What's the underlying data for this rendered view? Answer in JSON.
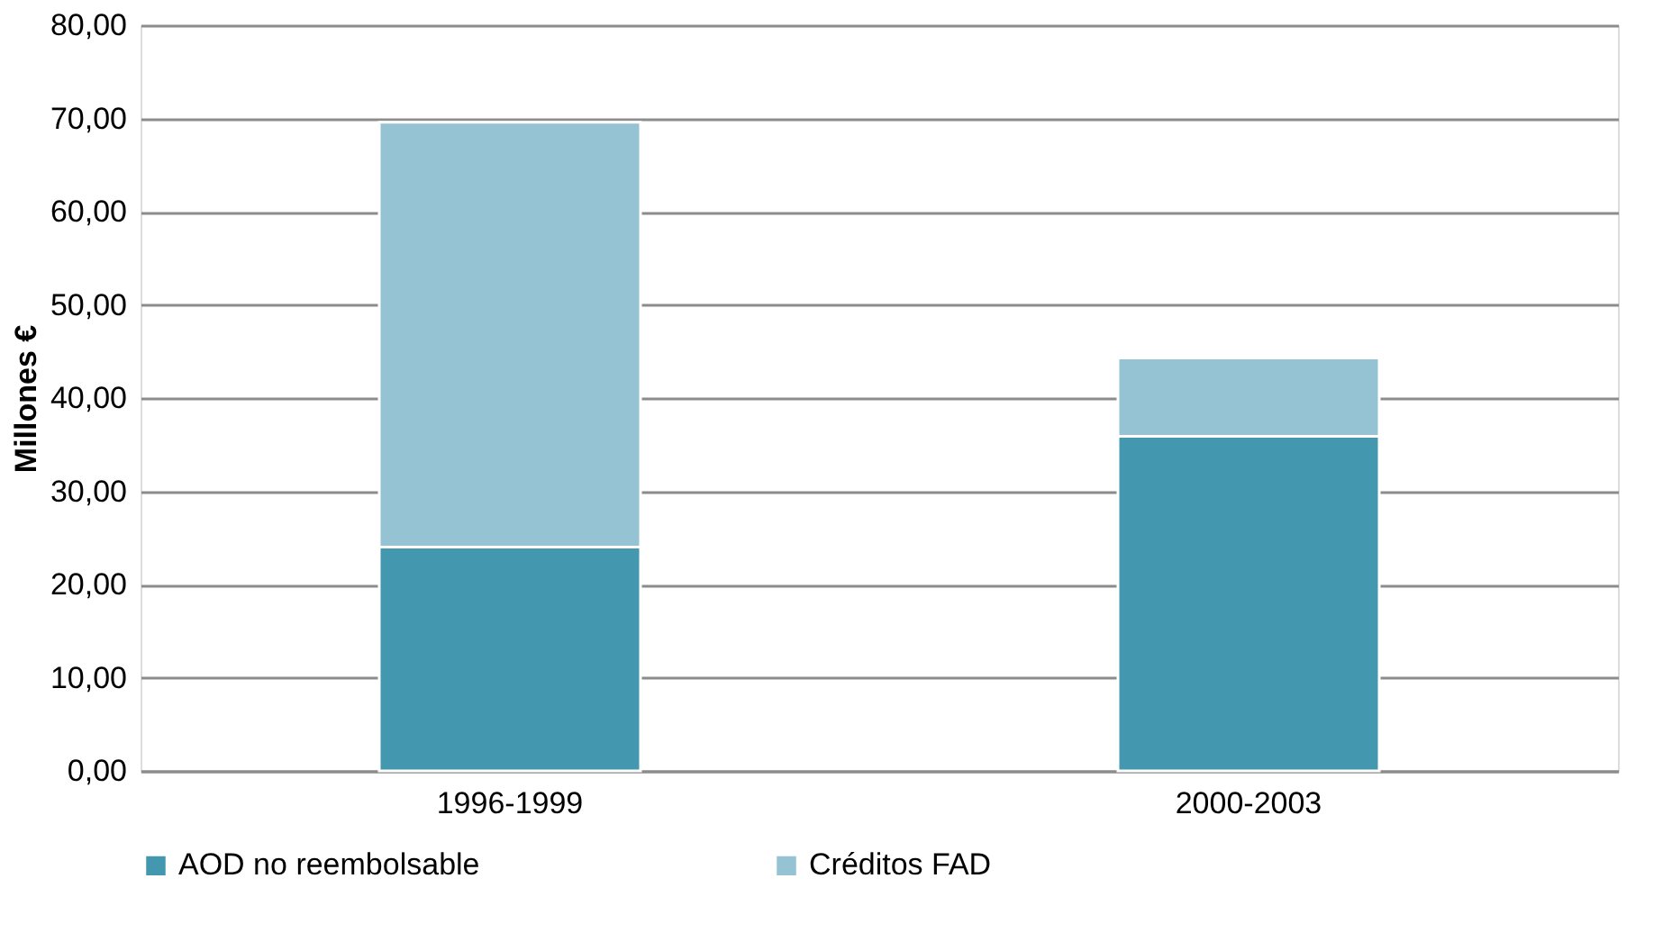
{
  "chart_data": {
    "type": "bar",
    "stacked": true,
    "ylabel": "Millones €",
    "categories": [
      "1996-1999",
      "2000-2003"
    ],
    "series": [
      {
        "name": "AOD no reembolsable",
        "color": "#4397af",
        "values": [
          24.0,
          35.9
        ]
      },
      {
        "name": "Créditos FAD",
        "color": "#95c3d4",
        "values": [
          45.6,
          8.4
        ]
      }
    ],
    "ylim": [
      0,
      80
    ],
    "yticks": [
      {
        "value": 0,
        "label": "0,00"
      },
      {
        "value": 10,
        "label": "10,00"
      },
      {
        "value": 20,
        "label": "20,00"
      },
      {
        "value": 30,
        "label": "30,00"
      },
      {
        "value": 40,
        "label": "40,00"
      },
      {
        "value": 50,
        "label": "50,00"
      },
      {
        "value": 60,
        "label": "60,00"
      },
      {
        "value": 70,
        "label": "70,00"
      },
      {
        "value": 80,
        "label": "80,00"
      }
    ],
    "grid": "y",
    "legend": "bottom"
  }
}
